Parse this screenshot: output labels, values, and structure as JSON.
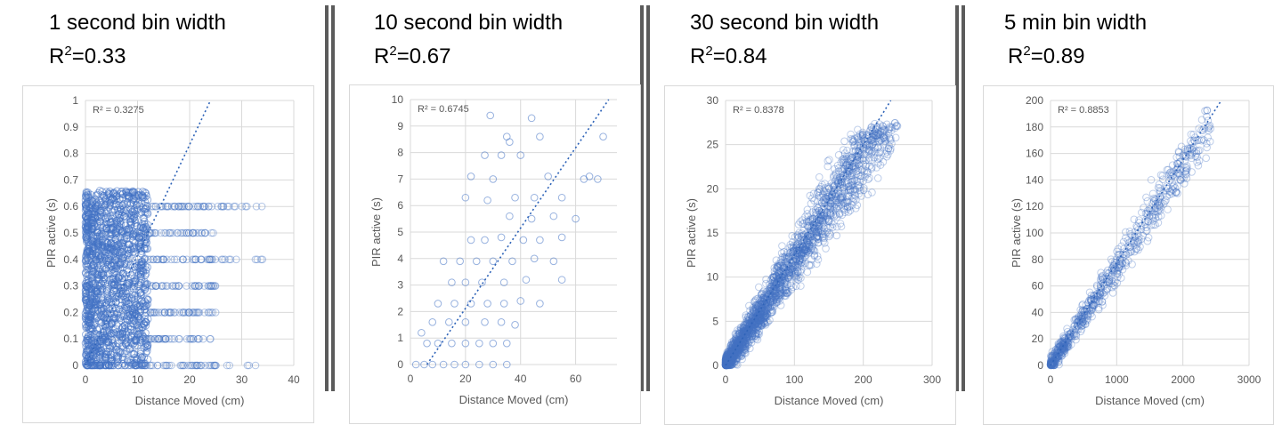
{
  "panels": [
    {
      "title": "1 second bin width",
      "r2_prefix": "R",
      "r2_sup": "2",
      "r2_value": "=0.33"
    },
    {
      "title": "10 second bin width",
      "r2_prefix": "R",
      "r2_sup": "2",
      "r2_value": "=0.67"
    },
    {
      "title": "30 second bin width",
      "r2_prefix": "R",
      "r2_sup": "2",
      "r2_value": "=0.84"
    },
    {
      "title": "5 min bin width",
      "r2_prefix": "R",
      "r2_sup": "2",
      "r2_value": "=0.89"
    }
  ],
  "colors": {
    "points": "#4472c4",
    "grid": "#d9d9d9",
    "text": "#595959"
  },
  "chart_data": [
    {
      "type": "scatter",
      "xlabel": "Distance Moved (cm)",
      "ylabel": "PIR active (s)",
      "xlim": [
        0,
        40
      ],
      "ylim": [
        0,
        1
      ],
      "x_ticks": [
        "0",
        "10",
        "20",
        "30",
        "40"
      ],
      "y_ticks": [
        "0",
        "0.1",
        "0.2",
        "0.3",
        "0.4",
        "0.5",
        "0.6",
        "0.7",
        "0.8",
        "0.9",
        "1"
      ],
      "r2_annotation": "R² = 0.3275",
      "trendline": {
        "style": "dotted",
        "from": [
          0,
          0
        ],
        "to": [
          24,
          1.0
        ]
      },
      "grid": true,
      "point_clouds": [
        {
          "x_range": [
            0,
            12
          ],
          "y_levels": [
            0,
            0.04,
            0.08,
            0.12,
            0.16,
            0.2,
            0.24,
            0.28,
            0.32,
            0.36,
            0.4,
            0.44,
            0.48,
            0.52,
            0.56,
            0.6,
            0.64
          ],
          "density": "very high"
        },
        {
          "x_range": [
            12,
            25
          ],
          "y_levels": [
            0,
            0.1,
            0.2,
            0.3,
            0.4,
            0.5,
            0.6
          ],
          "density": "medium"
        },
        {
          "x_range": [
            25,
            34
          ],
          "y_levels": [
            0,
            0.4,
            0.6
          ],
          "density": "sparse"
        }
      ]
    },
    {
      "type": "scatter",
      "xlabel": "Distance Moved (cm)",
      "ylabel": "PIR active (s)",
      "xlim": [
        0,
        75
      ],
      "ylim": [
        0,
        10
      ],
      "x_ticks": [
        "0",
        "20",
        "40",
        "60"
      ],
      "y_ticks": [
        "0",
        "1",
        "2",
        "3",
        "4",
        "5",
        "6",
        "7",
        "8",
        "9",
        "10"
      ],
      "r2_annotation": "R² = 0.6745",
      "trendline": {
        "style": "dotted",
        "from": [
          6,
          0
        ],
        "to": [
          72,
          10
        ]
      },
      "grid": true,
      "points": [
        [
          29,
          9.4
        ],
        [
          44,
          9.3
        ],
        [
          35,
          8.6
        ],
        [
          36,
          8.4
        ],
        [
          47,
          8.6
        ],
        [
          70,
          8.6
        ],
        [
          33,
          7.9
        ],
        [
          27,
          7.9
        ],
        [
          40,
          7.9
        ],
        [
          65,
          7.1
        ],
        [
          63,
          7.0
        ],
        [
          68,
          7.0
        ],
        [
          22,
          7.1
        ],
        [
          30,
          7.0
        ],
        [
          50,
          7.1
        ],
        [
          20,
          6.3
        ],
        [
          28,
          6.2
        ],
        [
          38,
          6.3
        ],
        [
          45,
          6.3
        ],
        [
          55,
          6.3
        ],
        [
          36,
          5.6
        ],
        [
          44,
          5.5
        ],
        [
          52,
          5.6
        ],
        [
          60,
          5.5
        ],
        [
          27,
          4.7
        ],
        [
          33,
          4.8
        ],
        [
          41,
          4.7
        ],
        [
          47,
          4.7
        ],
        [
          55,
          4.8
        ],
        [
          22,
          4.7
        ],
        [
          24,
          3.9
        ],
        [
          30,
          3.9
        ],
        [
          37,
          3.9
        ],
        [
          45,
          4.0
        ],
        [
          52,
          3.9
        ],
        [
          12,
          3.9
        ],
        [
          18,
          3.9
        ],
        [
          26,
          3.1
        ],
        [
          34,
          3.1
        ],
        [
          42,
          3.2
        ],
        [
          55,
          3.2
        ],
        [
          15,
          3.1
        ],
        [
          20,
          3.1
        ],
        [
          10,
          2.3
        ],
        [
          16,
          2.3
        ],
        [
          22,
          2.3
        ],
        [
          28,
          2.3
        ],
        [
          34,
          2.3
        ],
        [
          40,
          2.4
        ],
        [
          47,
          2.3
        ],
        [
          8,
          1.6
        ],
        [
          14,
          1.6
        ],
        [
          20,
          1.6
        ],
        [
          27,
          1.6
        ],
        [
          33,
          1.6
        ],
        [
          38,
          1.5
        ],
        [
          4,
          1.2
        ],
        [
          6,
          0.8
        ],
        [
          10,
          0.8
        ],
        [
          15,
          0.8
        ],
        [
          20,
          0.8
        ],
        [
          25,
          0.8
        ],
        [
          30,
          0.8
        ],
        [
          35,
          0.8
        ],
        [
          2,
          0
        ],
        [
          5,
          0
        ],
        [
          8,
          0
        ],
        [
          12,
          0
        ],
        [
          16,
          0
        ],
        [
          20,
          0
        ],
        [
          25,
          0
        ],
        [
          30,
          0
        ],
        [
          35,
          0
        ]
      ]
    },
    {
      "type": "scatter",
      "xlabel": "Distance Moved (cm)",
      "ylabel": "PIR active (s)",
      "xlim": [
        0,
        300
      ],
      "ylim": [
        0,
        30
      ],
      "x_ticks": [
        "0",
        "100",
        "200",
        "300"
      ],
      "y_ticks": [
        "0",
        "5",
        "10",
        "15",
        "20",
        "25",
        "30"
      ],
      "r2_annotation": "R² = 0.8378",
      "trendline": {
        "style": "dotted",
        "from": [
          0,
          0
        ],
        "to": [
          240,
          30
        ]
      },
      "grid": true,
      "point_cloud": {
        "x_range": [
          0,
          250
        ],
        "y_range": [
          0,
          27.5
        ],
        "slope": 0.12,
        "spread": 4.5,
        "density": "very high"
      }
    },
    {
      "type": "scatter",
      "xlabel": "Distance Moved (cm)",
      "ylabel": "PIR active (s)",
      "xlim": [
        0,
        3000
      ],
      "ylim": [
        0,
        200
      ],
      "x_ticks": [
        "0",
        "1000",
        "2000",
        "3000"
      ],
      "y_ticks": [
        "0",
        "20",
        "40",
        "60",
        "80",
        "100",
        "120",
        "140",
        "160",
        "180",
        "200"
      ],
      "r2_annotation": "R² = 0.8853",
      "trendline": {
        "style": "dotted",
        "from": [
          0,
          0
        ],
        "to": [
          2580,
          200
        ]
      },
      "grid": true,
      "point_cloud": {
        "x_range": [
          0,
          2450
        ],
        "y_range": [
          0,
          193
        ],
        "slope": 0.075,
        "spread": 20,
        "density": "high"
      }
    }
  ]
}
